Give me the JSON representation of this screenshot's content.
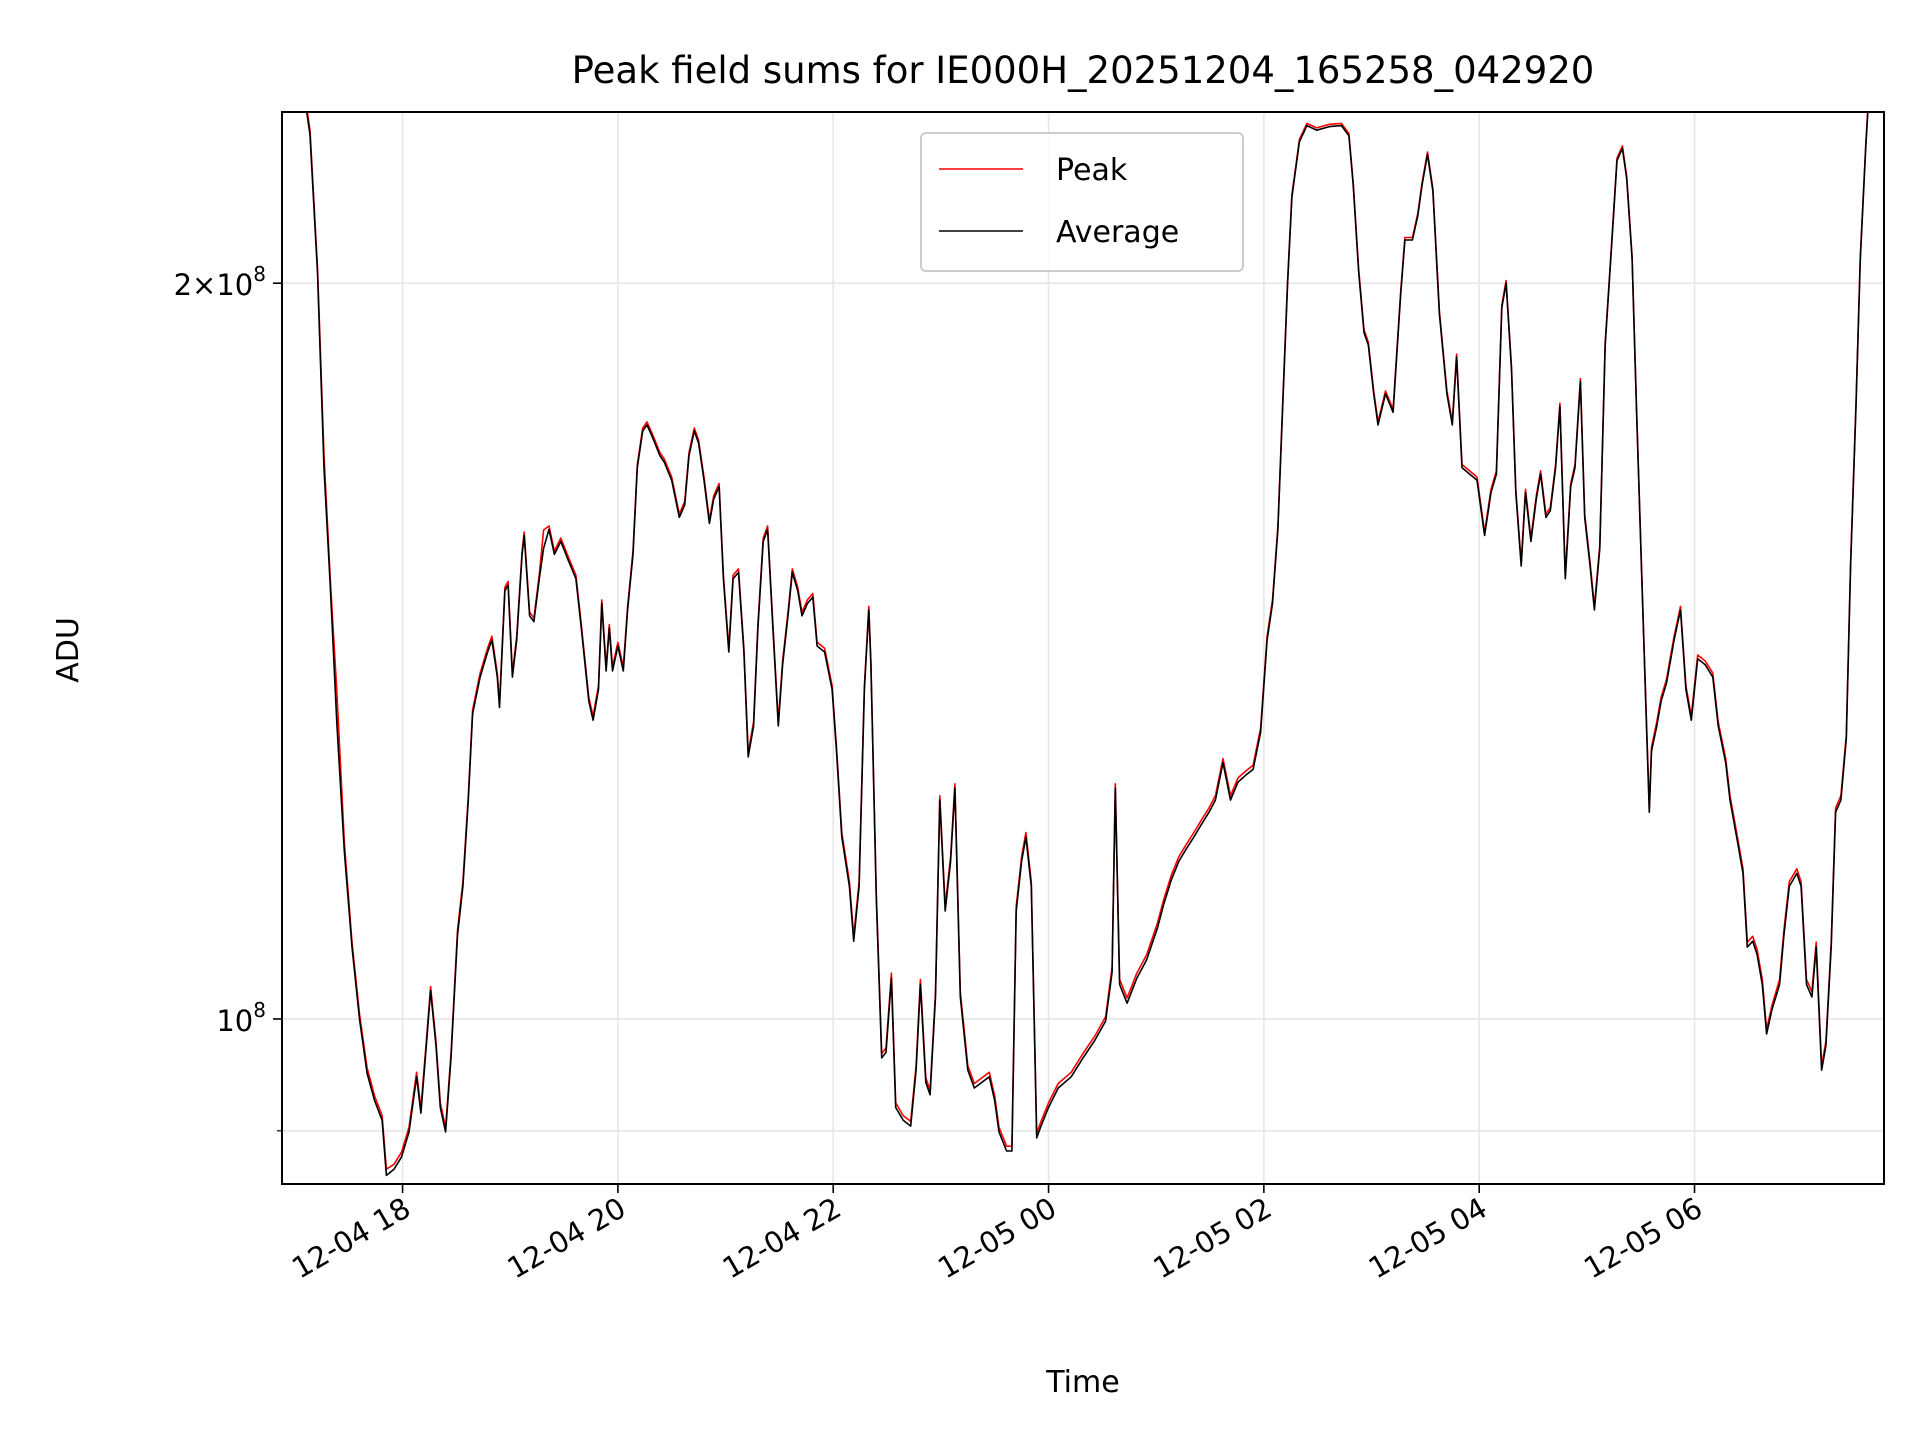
{
  "chart_data": {
    "type": "line",
    "title": "Peak field sums for IE000H_20251204_165258_042920",
    "xlabel": "Time",
    "ylabel": "ADU",
    "yscale": "log",
    "y_unit_multiplier": 100000000,
    "ylim": [
      0.856,
      2.35
    ],
    "xlim_hours_from_2025_12_04_0000": [
      16.88,
      31.76
    ],
    "x_ticks": [
      {
        "hours": 18,
        "label": "12-04 18"
      },
      {
        "hours": 20,
        "label": "12-04 20"
      },
      {
        "hours": 22,
        "label": "12-04 22"
      },
      {
        "hours": 24,
        "label": "12-05 00"
      },
      {
        "hours": 26,
        "label": "12-05 02"
      },
      {
        "hours": 28,
        "label": "12-05 04"
      },
      {
        "hours": 30,
        "label": "12-05 06"
      }
    ],
    "y_ticks": [
      {
        "value": 1.0,
        "label_base": "10",
        "label_exp": "8",
        "label_prefix": ""
      },
      {
        "value": 2.0,
        "label_base": "10",
        "label_exp": "8",
        "label_prefix": "2×"
      }
    ],
    "y_minor_ticks": [
      0.9
    ],
    "grid": true,
    "legend": {
      "placement": "top-center",
      "entries": [
        {
          "name": "Peak",
          "color": "#ff0000"
        },
        {
          "name": "Average",
          "color": "#000000"
        }
      ]
    },
    "x": [
      17.06,
      17.14,
      17.21,
      17.27,
      17.33,
      17.39,
      17.46,
      17.53,
      17.6,
      17.67,
      17.74,
      17.81,
      17.85,
      17.92,
      17.99,
      18.06,
      18.13,
      18.17,
      18.22,
      18.26,
      18.31,
      18.35,
      18.4,
      18.45,
      18.51,
      18.56,
      18.61,
      18.65,
      18.72,
      18.79,
      18.83,
      18.88,
      18.9,
      18.95,
      18.98,
      19.02,
      19.06,
      19.11,
      19.13,
      19.18,
      19.22,
      19.27,
      19.31,
      19.36,
      19.41,
      19.47,
      19.54,
      19.61,
      19.66,
      19.73,
      19.77,
      19.82,
      19.85,
      19.89,
      19.92,
      19.95,
      20.0,
      20.05,
      20.09,
      20.14,
      20.18,
      20.23,
      20.27,
      20.32,
      20.39,
      20.43,
      20.5,
      20.57,
      20.62,
      20.66,
      20.71,
      20.75,
      20.8,
      20.85,
      20.89,
      20.94,
      20.98,
      21.03,
      21.07,
      21.12,
      21.17,
      21.21,
      21.26,
      21.3,
      21.35,
      21.39,
      21.44,
      21.49,
      21.53,
      21.58,
      21.62,
      21.67,
      21.71,
      21.76,
      21.81,
      21.85,
      21.92,
      21.99,
      22.03,
      22.08,
      22.15,
      22.19,
      22.24,
      22.29,
      22.33,
      22.35,
      22.4,
      22.45,
      22.49,
      22.54,
      22.58,
      22.65,
      22.72,
      22.77,
      22.81,
      22.86,
      22.9,
      22.95,
      22.99,
      23.04,
      23.09,
      23.13,
      23.18,
      23.25,
      23.31,
      23.38,
      23.45,
      23.5,
      23.54,
      23.61,
      23.66,
      23.7,
      23.75,
      23.79,
      23.84,
      23.89,
      23.93,
      24.0,
      24.09,
      24.21,
      24.32,
      24.43,
      24.53,
      24.59,
      24.62,
      24.66,
      24.73,
      24.82,
      24.91,
      25.01,
      25.07,
      25.14,
      25.21,
      25.28,
      25.35,
      25.42,
      25.49,
      25.55,
      25.62,
      25.69,
      25.76,
      25.83,
      25.9,
      25.97,
      26.03,
      26.08,
      26.13,
      26.17,
      26.22,
      26.26,
      26.33,
      26.4,
      26.49,
      26.61,
      26.72,
      26.79,
      26.83,
      26.88,
      26.93,
      26.97,
      27.02,
      27.06,
      27.13,
      27.2,
      27.27,
      27.31,
      27.38,
      27.43,
      27.47,
      27.52,
      27.57,
      27.63,
      27.7,
      27.75,
      27.79,
      27.84,
      27.91,
      27.98,
      28.05,
      28.11,
      28.16,
      28.21,
      28.25,
      28.3,
      28.34,
      28.39,
      28.43,
      28.48,
      28.53,
      28.57,
      28.62,
      28.66,
      28.71,
      28.75,
      28.8,
      28.85,
      28.89,
      28.94,
      28.98,
      29.03,
      29.07,
      29.12,
      29.17,
      29.23,
      29.28,
      29.33,
      29.37,
      29.42,
      29.46,
      29.51,
      29.55,
      29.58,
      29.6,
      29.65,
      29.69,
      29.74,
      29.81,
      29.87,
      29.92,
      29.97,
      30.03,
      30.1,
      30.17,
      30.22,
      30.29,
      30.33,
      30.4,
      30.45,
      30.49,
      30.54,
      30.58,
      30.63,
      30.67,
      30.72,
      30.79,
      30.83,
      30.88,
      30.95,
      30.99,
      31.04,
      31.09,
      31.13,
      31.18,
      31.22,
      31.27,
      31.31,
      31.36,
      31.41,
      31.45,
      31.5,
      31.54,
      31.59,
      31.63
    ],
    "series": [
      {
        "name": "Average",
        "values": [
          2.435,
          2.3,
          2.02,
          1.68,
          1.5,
          1.32,
          1.17,
          1.07,
          1.0,
          0.95,
          0.926,
          0.909,
          0.863,
          0.868,
          0.878,
          0.899,
          0.947,
          0.915,
          0.975,
          1.027,
          0.975,
          0.92,
          0.899,
          0.964,
          1.082,
          1.133,
          1.229,
          1.333,
          1.38,
          1.413,
          1.429,
          1.38,
          1.341,
          1.497,
          1.505,
          1.38,
          1.429,
          1.549,
          1.577,
          1.462,
          1.454,
          1.514,
          1.558,
          1.586,
          1.549,
          1.568,
          1.54,
          1.514,
          1.445,
          1.349,
          1.325,
          1.364,
          1.479,
          1.388,
          1.445,
          1.388,
          1.421,
          1.388,
          1.47,
          1.549,
          1.681,
          1.74,
          1.75,
          1.73,
          1.7,
          1.69,
          1.661,
          1.604,
          1.623,
          1.7,
          1.74,
          1.72,
          1.661,
          1.595,
          1.632,
          1.651,
          1.514,
          1.413,
          1.514,
          1.523,
          1.413,
          1.28,
          1.318,
          1.445,
          1.568,
          1.586,
          1.445,
          1.318,
          1.396,
          1.462,
          1.523,
          1.497,
          1.462,
          1.479,
          1.488,
          1.421,
          1.413,
          1.364,
          1.287,
          1.187,
          1.133,
          1.076,
          1.133,
          1.364,
          1.47,
          1.396,
          1.12,
          0.964,
          0.969,
          1.039,
          0.92,
          0.909,
          0.904,
          0.953,
          1.033,
          0.942,
          0.931,
          1.021,
          1.229,
          1.107,
          1.16,
          1.243,
          1.021,
          0.953,
          0.937,
          0.942,
          0.947,
          0.926,
          0.899,
          0.883,
          0.883,
          1.107,
          1.16,
          1.187,
          1.133,
          0.894,
          0.904,
          0.92,
          0.937,
          0.947,
          0.964,
          0.98,
          0.998,
          1.045,
          1.243,
          1.033,
          1.015,
          1.039,
          1.057,
          1.089,
          1.114,
          1.14,
          1.16,
          1.174,
          1.187,
          1.201,
          1.215,
          1.229,
          1.273,
          1.229,
          1.25,
          1.258,
          1.265,
          1.31,
          1.429,
          1.479,
          1.586,
          1.76,
          2.0,
          2.169,
          2.285,
          2.32,
          2.31,
          2.318,
          2.32,
          2.298,
          2.194,
          2.023,
          1.909,
          1.887,
          1.802,
          1.75,
          1.802,
          1.771,
          1.977,
          2.083,
          2.083,
          2.131,
          2.194,
          2.258,
          2.181,
          1.943,
          1.802,
          1.75,
          1.866,
          1.681,
          1.671,
          1.661,
          1.577,
          1.642,
          1.671,
          1.954,
          2.0,
          1.844,
          1.642,
          1.532,
          1.642,
          1.568,
          1.632,
          1.671,
          1.604,
          1.614,
          1.681,
          1.781,
          1.514,
          1.651,
          1.681,
          1.823,
          1.604,
          1.532,
          1.47,
          1.558,
          1.887,
          2.071,
          2.245,
          2.271,
          2.207,
          2.046,
          1.781,
          1.514,
          1.333,
          1.215,
          1.287,
          1.318,
          1.349,
          1.372,
          1.429,
          1.47,
          1.364,
          1.325,
          1.404,
          1.396,
          1.38,
          1.318,
          1.273,
          1.229,
          1.181,
          1.147,
          1.07,
          1.076,
          1.063,
          1.033,
          0.986,
          1.009,
          1.033,
          1.082,
          1.133,
          1.147,
          1.133,
          1.033,
          1.021,
          1.07,
          0.953,
          0.975,
          1.07,
          1.215,
          1.229,
          1.302,
          1.532,
          1.781,
          2.046,
          2.271,
          2.435
        ]
      },
      {
        "name": "Peak",
        "values": [
          2.44,
          2.31,
          2.03,
          1.7,
          1.51,
          1.36,
          1.18,
          1.075,
          1.005,
          0.955,
          0.93,
          0.913,
          0.868,
          0.872,
          0.882,
          0.903,
          0.951,
          0.919,
          0.979,
          1.031,
          0.979,
          0.924,
          0.903,
          0.968,
          1.087,
          1.138,
          1.234,
          1.338,
          1.385,
          1.418,
          1.434,
          1.385,
          1.346,
          1.502,
          1.51,
          1.385,
          1.434,
          1.554,
          1.582,
          1.467,
          1.459,
          1.52,
          1.585,
          1.591,
          1.554,
          1.573,
          1.545,
          1.519,
          1.45,
          1.354,
          1.33,
          1.369,
          1.484,
          1.393,
          1.45,
          1.393,
          1.426,
          1.393,
          1.475,
          1.554,
          1.686,
          1.745,
          1.755,
          1.735,
          1.705,
          1.695,
          1.666,
          1.609,
          1.628,
          1.705,
          1.745,
          1.725,
          1.666,
          1.6,
          1.637,
          1.656,
          1.519,
          1.418,
          1.519,
          1.528,
          1.418,
          1.285,
          1.323,
          1.45,
          1.573,
          1.591,
          1.45,
          1.323,
          1.401,
          1.467,
          1.528,
          1.502,
          1.467,
          1.484,
          1.493,
          1.426,
          1.418,
          1.369,
          1.292,
          1.192,
          1.138,
          1.081,
          1.138,
          1.369,
          1.475,
          1.401,
          1.125,
          0.968,
          0.973,
          1.044,
          0.924,
          0.913,
          0.908,
          0.957,
          1.038,
          0.946,
          0.935,
          1.026,
          1.234,
          1.112,
          1.165,
          1.248,
          1.026,
          0.957,
          0.941,
          0.946,
          0.951,
          0.93,
          0.903,
          0.887,
          0.887,
          1.112,
          1.165,
          1.192,
          1.138,
          0.898,
          0.908,
          0.924,
          0.941,
          0.951,
          0.968,
          0.984,
          1.002,
          1.05,
          1.248,
          1.038,
          1.02,
          1.044,
          1.062,
          1.094,
          1.119,
          1.145,
          1.165,
          1.179,
          1.192,
          1.206,
          1.22,
          1.234,
          1.278,
          1.234,
          1.255,
          1.263,
          1.27,
          1.315,
          1.434,
          1.484,
          1.591,
          1.765,
          2.005,
          2.174,
          2.29,
          2.325,
          2.315,
          2.323,
          2.325,
          2.303,
          2.199,
          2.028,
          1.914,
          1.892,
          1.807,
          1.755,
          1.807,
          1.776,
          1.982,
          2.088,
          2.088,
          2.136,
          2.199,
          2.263,
          2.186,
          1.948,
          1.807,
          1.755,
          1.871,
          1.686,
          1.676,
          1.666,
          1.582,
          1.647,
          1.676,
          1.959,
          2.005,
          1.849,
          1.647,
          1.537,
          1.647,
          1.573,
          1.637,
          1.676,
          1.609,
          1.619,
          1.686,
          1.786,
          1.519,
          1.656,
          1.686,
          1.828,
          1.609,
          1.537,
          1.475,
          1.563,
          1.892,
          2.076,
          2.25,
          2.276,
          2.212,
          2.051,
          1.786,
          1.519,
          1.338,
          1.22,
          1.292,
          1.323,
          1.354,
          1.377,
          1.434,
          1.475,
          1.369,
          1.33,
          1.409,
          1.401,
          1.385,
          1.323,
          1.278,
          1.234,
          1.186,
          1.152,
          1.075,
          1.081,
          1.068,
          1.038,
          0.99,
          1.013,
          1.038,
          1.087,
          1.138,
          1.152,
          1.138,
          1.038,
          1.026,
          1.075,
          0.957,
          0.979,
          1.075,
          1.22,
          1.234,
          1.307,
          1.537,
          1.786,
          2.051,
          2.276,
          2.44
        ]
      }
    ]
  }
}
